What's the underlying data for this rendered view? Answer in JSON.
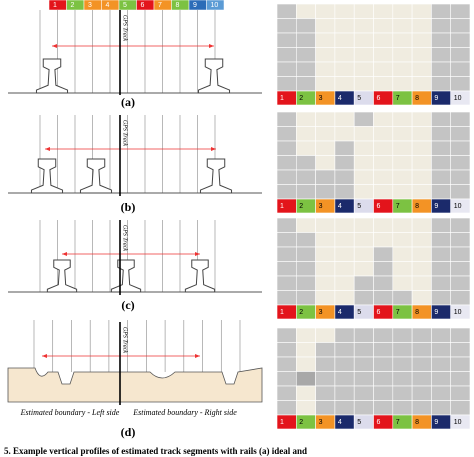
{
  "panels": [
    {
      "label": "(a)",
      "track": "GPS Track"
    },
    {
      "label": "(b)",
      "track": "GPS Track"
    },
    {
      "label": "(c)",
      "track": "GPS Track"
    },
    {
      "label": "(d)",
      "track": "GPS Track"
    }
  ],
  "segments": [
    "1",
    "2",
    "3",
    "4",
    "5",
    "6",
    "7",
    "8",
    "9",
    "10"
  ],
  "boundary_left": "Estimated boundary - Left side",
  "boundary_right": "Estimated boundary - Right side",
  "caption": "5. Example vertical profiles of estimated track segments with rails (a) ideal and"
}
